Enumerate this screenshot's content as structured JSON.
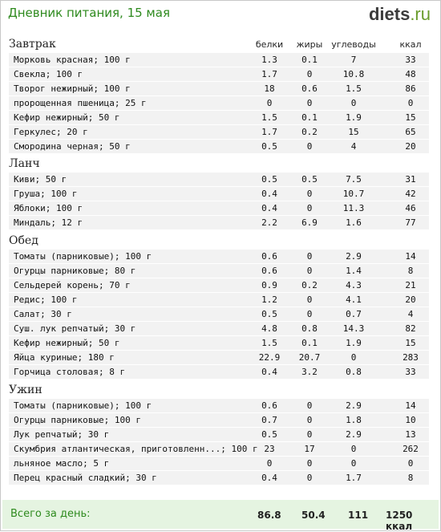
{
  "header": {
    "title": "Дневник питания, 15 мая",
    "logo_main": "diets",
    "logo_tld": ".ru"
  },
  "columns": {
    "protein": "белки",
    "fat": "жиры",
    "carbs": "углеводы",
    "kcal": "ккал"
  },
  "meals": [
    {
      "name": "Завтрак",
      "items": [
        [
          "Морковь красная; 100 г",
          "1.3",
          "0.1",
          "7",
          "33"
        ],
        [
          "Свекла; 100 г",
          "1.7",
          "0",
          "10.8",
          "48"
        ],
        [
          "Творог нежирный; 100 г",
          "18",
          "0.6",
          "1.5",
          "86"
        ],
        [
          "пророщенная пшеница; 25 г",
          "0",
          "0",
          "0",
          "0"
        ],
        [
          "Кефир нежирный; 50 г",
          "1.5",
          "0.1",
          "1.9",
          "15"
        ],
        [
          "Геркулес; 20 г",
          "1.7",
          "0.2",
          "15",
          "65"
        ],
        [
          "Смородина черная; 50 г",
          "0.5",
          "0",
          "4",
          "20"
        ]
      ]
    },
    {
      "name": "Ланч",
      "items": [
        [
          "Киви; 50 г",
          "0.5",
          "0.5",
          "7.5",
          "31"
        ],
        [
          "Груша; 100 г",
          "0.4",
          "0",
          "10.7",
          "42"
        ],
        [
          "Яблоки; 100 г",
          "0.4",
          "0",
          "11.3",
          "46"
        ],
        [
          "Миндаль; 12 г",
          "2.2",
          "6.9",
          "1.6",
          "77"
        ]
      ]
    },
    {
      "name": "Обед",
      "items": [
        [
          "Томаты (парниковые); 100 г",
          "0.6",
          "0",
          "2.9",
          "14"
        ],
        [
          "Огурцы парниковые; 80 г",
          "0.6",
          "0",
          "1.4",
          "8"
        ],
        [
          "Сельдерей корень; 70 г",
          "0.9",
          "0.2",
          "4.3",
          "21"
        ],
        [
          "Редис; 100 г",
          "1.2",
          "0",
          "4.1",
          "20"
        ],
        [
          "Салат; 30 г",
          "0.5",
          "0",
          "0.7",
          "4"
        ],
        [
          "Суш. лук репчатый; 30 г",
          "4.8",
          "0.8",
          "14.3",
          "82"
        ],
        [
          "Кефир нежирный; 50 г",
          "1.5",
          "0.1",
          "1.9",
          "15"
        ],
        [
          "Яйца куриные; 180 г",
          "22.9",
          "20.7",
          "0",
          "283"
        ],
        [
          "Горчица столовая; 8 г",
          "0.4",
          "3.2",
          "0.8",
          "33"
        ]
      ]
    },
    {
      "name": "Ужин",
      "items": [
        [
          "Томаты (парниковые); 100 г",
          "0.6",
          "0",
          "2.9",
          "14"
        ],
        [
          "Огурцы парниковые; 100 г",
          "0.7",
          "0",
          "1.8",
          "10"
        ],
        [
          "Лук репчатый; 30 г",
          "0.5",
          "0",
          "2.9",
          "13"
        ],
        [
          "Скумбрия атлантическая, приготовленн...; 100 г",
          "23",
          "17",
          "0",
          "262"
        ],
        [
          "льняное масло; 5 г",
          "0",
          "0",
          "0",
          "0"
        ],
        [
          "Перец красный сладкий; 30 г",
          "0.4",
          "0",
          "1.7",
          "8"
        ]
      ]
    }
  ],
  "totals": {
    "label": "Всего за день:",
    "protein": "86.8",
    "fat": "50.4",
    "carbs": "111",
    "kcal": "1250 ккал"
  }
}
